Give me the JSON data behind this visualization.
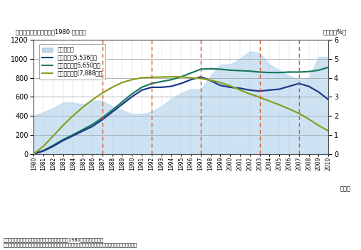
{
  "years": [
    1980,
    1981,
    1982,
    1983,
    1984,
    1985,
    1986,
    1987,
    1988,
    1989,
    1990,
    1991,
    1992,
    1993,
    1994,
    1995,
    1996,
    1997,
    1998,
    1999,
    2000,
    2001,
    2002,
    2003,
    2004,
    2005,
    2006,
    2007,
    2008,
    2009,
    2010
  ],
  "employed": [
    0,
    30,
    80,
    140,
    190,
    240,
    290,
    360,
    440,
    520,
    600,
    670,
    700,
    700,
    710,
    740,
    780,
    810,
    770,
    720,
    700,
    690,
    670,
    660,
    670,
    680,
    710,
    740,
    710,
    650,
    570
  ],
  "labor_force": [
    0,
    35,
    90,
    150,
    200,
    255,
    310,
    380,
    460,
    545,
    630,
    700,
    740,
    760,
    780,
    810,
    850,
    890,
    895,
    890,
    880,
    875,
    870,
    860,
    855,
    855,
    860,
    860,
    865,
    880,
    910
  ],
  "working_age": [
    0,
    80,
    190,
    300,
    400,
    490,
    570,
    640,
    700,
    750,
    780,
    800,
    805,
    808,
    810,
    810,
    800,
    792,
    775,
    750,
    715,
    672,
    630,
    595,
    555,
    515,
    472,
    425,
    365,
    298,
    240
  ],
  "unemployment_rate": [
    2.0,
    2.2,
    2.4,
    2.7,
    2.7,
    2.6,
    2.8,
    2.8,
    2.5,
    2.3,
    2.1,
    2.1,
    2.2,
    2.5,
    2.9,
    3.2,
    3.4,
    3.4,
    4.1,
    4.7,
    4.7,
    5.0,
    5.4,
    5.3,
    4.7,
    4.4,
    4.1,
    3.9,
    4.0,
    5.1,
    5.1
  ],
  "vline_years": [
    1987,
    1992,
    1997,
    2003,
    2007
  ],
  "title_left": "（万人）　（　）内は、1980 年の人数",
  "title_right": "（失業率%）",
  "ylim_left": [
    0,
    1200
  ],
  "ylim_right": [
    0,
    6
  ],
  "yticks_left": [
    0,
    200,
    400,
    600,
    800,
    1000,
    1200
  ],
  "yticks_right": [
    0,
    1,
    2,
    3,
    4,
    5,
    6
  ],
  "legend_labels": [
    "失業率右軸",
    "就業者数（5,536万）",
    "労働力人口（5,650万）",
    "生産年齢人口(7,888万）"
  ],
  "color_employed": "#1b3a8c",
  "color_labor": "#1a7a5e",
  "color_working": "#88a020",
  "area_color": "#b8d8f0",
  "area_alpha": 0.7,
  "note1": "備考：就業者数、労働力人口、生産年齢人口の値は1980年の値との差分。",
  "note2": "資料：総務省統計局統計調査部国勢統計課「国勢調査報告」「人口推計年報」「労働力調査」から作成。"
}
